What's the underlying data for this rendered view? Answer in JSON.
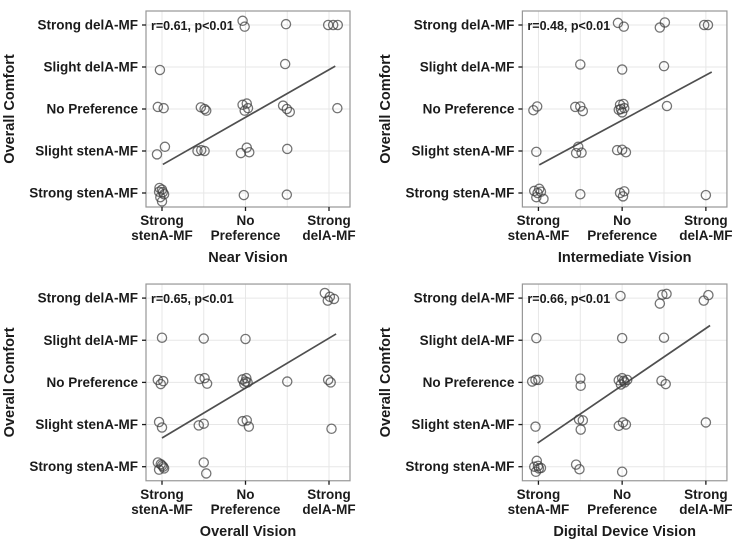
{
  "page": {
    "background": "#ffffff"
  },
  "style": {
    "point_color": "#3f3f3f",
    "point_opacity": 0.72,
    "trend_color": "#4f4f4f",
    "grid_color": "#e7e7e7",
    "border_color": "#979797",
    "text_color": "#1b1b1b"
  },
  "axis": {
    "y_label": "Overall Comfort",
    "y_tick_labels": [
      "Strong delA-MF",
      "Slight delA-MF",
      "No Preference",
      "Slight stenA-MF",
      "Strong stenA-MF"
    ],
    "x_tick_positions": [
      1,
      3,
      5
    ],
    "x_tick_labels": [
      [
        "Strong",
        "stenA-MF"
      ],
      [
        "No",
        "Preference"
      ],
      [
        "Strong",
        "delA-MF"
      ]
    ]
  },
  "chart_data": [
    {
      "type": "scatter",
      "xlabel": "Near Vision",
      "ylabel": "Overall Comfort",
      "annotation": "r=0.61, p<0.01",
      "r": 0.61,
      "p": "<0.01",
      "x_categories": {
        "1": "Strong stenA-MF",
        "3": "No Preference",
        "5": "Strong delA-MF"
      },
      "y_categories": {
        "1": "Strong stenA-MF",
        "2": "Slight stenA-MF",
        "3": "No Preference",
        "4": "Slight delA-MF",
        "5": "Strong delA-MF"
      },
      "xlim": [
        0.6,
        5.5
      ],
      "ylim": [
        0.66,
        5.33
      ],
      "trendline": {
        "x1": 1.02,
        "y1": 1.68,
        "x2": 5.15,
        "y2": 4.02
      },
      "points": [
        [
          2.93,
          5.1
        ],
        [
          2.98,
          4.96
        ],
        [
          3.97,
          5.02
        ],
        [
          4.98,
          5.0
        ],
        [
          5.1,
          5.0
        ],
        [
          5.21,
          5.0
        ],
        [
          0.95,
          3.93
        ],
        [
          3.95,
          4.07
        ],
        [
          0.9,
          3.05
        ],
        [
          1.04,
          3.02
        ],
        [
          1.93,
          3.04
        ],
        [
          2.02,
          3.0
        ],
        [
          2.06,
          2.96
        ],
        [
          2.93,
          3.1
        ],
        [
          3.03,
          3.13
        ],
        [
          2.98,
          2.96
        ],
        [
          3.06,
          3.02
        ],
        [
          3.9,
          3.08
        ],
        [
          3.99,
          3.0
        ],
        [
          4.06,
          2.93
        ],
        [
          5.2,
          3.02
        ],
        [
          0.88,
          1.92
        ],
        [
          1.07,
          2.1
        ],
        [
          1.85,
          2.0
        ],
        [
          1.94,
          2.02
        ],
        [
          2.02,
          2.0
        ],
        [
          2.89,
          1.95
        ],
        [
          3.03,
          2.08
        ],
        [
          3.09,
          1.97
        ],
        [
          4.0,
          2.05
        ],
        [
          0.93,
          1.03
        ],
        [
          1.0,
          1.08
        ],
        [
          1.05,
          0.97
        ],
        [
          0.96,
          0.9
        ],
        [
          1.02,
          1.02
        ],
        [
          0.94,
          1.12
        ],
        [
          1.0,
          0.8
        ],
        [
          2.96,
          0.95
        ],
        [
          3.99,
          0.96
        ]
      ]
    },
    {
      "type": "scatter",
      "xlabel": "Intermediate Vision",
      "ylabel": "Overall Comfort",
      "annotation": "r=0.48, p<0.01",
      "r": 0.48,
      "p": "<0.01",
      "x_categories": {
        "1": "Strong stenA-MF",
        "3": "No Preference",
        "5": "Strong delA-MF"
      },
      "y_categories": {
        "1": "Strong stenA-MF",
        "2": "Slight stenA-MF",
        "3": "No Preference",
        "4": "Slight delA-MF",
        "5": "Strong delA-MF"
      },
      "xlim": [
        0.6,
        5.5
      ],
      "ylim": [
        0.66,
        5.33
      ],
      "trendline": {
        "x1": 1.02,
        "y1": 1.67,
        "x2": 5.14,
        "y2": 3.88
      },
      "points": [
        [
          2.9,
          5.05
        ],
        [
          3.04,
          4.96
        ],
        [
          3.9,
          4.94
        ],
        [
          4.02,
          5.06
        ],
        [
          4.96,
          5.0
        ],
        [
          5.05,
          5.0
        ],
        [
          2.0,
          4.06
        ],
        [
          3.0,
          3.94
        ],
        [
          4.0,
          4.02
        ],
        [
          0.88,
          2.97
        ],
        [
          0.97,
          3.06
        ],
        [
          1.88,
          3.05
        ],
        [
          2.0,
          3.06
        ],
        [
          2.06,
          2.95
        ],
        [
          2.95,
          3.1
        ],
        [
          3.03,
          3.12
        ],
        [
          2.97,
          3.0
        ],
        [
          3.05,
          3.02
        ],
        [
          3.0,
          2.92
        ],
        [
          2.92,
          2.98
        ],
        [
          4.07,
          3.07
        ],
        [
          0.95,
          1.98
        ],
        [
          1.95,
          2.1
        ],
        [
          1.9,
          1.95
        ],
        [
          2.03,
          1.96
        ],
        [
          2.88,
          2.02
        ],
        [
          3.0,
          2.03
        ],
        [
          3.09,
          1.97
        ],
        [
          0.9,
          1.05
        ],
        [
          0.98,
          1.0
        ],
        [
          1.06,
          1.03
        ],
        [
          0.95,
          0.9
        ],
        [
          1.02,
          1.1
        ],
        [
          1.12,
          0.86
        ],
        [
          2.0,
          0.97
        ],
        [
          2.95,
          1.0
        ],
        [
          3.02,
          0.92
        ],
        [
          3.05,
          1.04
        ],
        [
          5.0,
          0.95
        ]
      ]
    },
    {
      "type": "scatter",
      "xlabel": "Overall Vision",
      "ylabel": "Overall Comfort",
      "annotation": "r=0.65, p<0.01",
      "r": 0.65,
      "p": "<0.01",
      "x_categories": {
        "1": "Strong stenA-MF",
        "3": "No Preference",
        "5": "Strong delA-MF"
      },
      "y_categories": {
        "1": "Strong stenA-MF",
        "2": "Slight stenA-MF",
        "3": "No Preference",
        "4": "Slight delA-MF",
        "5": "Strong delA-MF"
      },
      "xlim": [
        0.6,
        5.5
      ],
      "ylim": [
        0.66,
        5.33
      ],
      "trendline": {
        "x1": 1.0,
        "y1": 1.68,
        "x2": 5.17,
        "y2": 4.15
      },
      "points": [
        [
          4.9,
          5.12
        ],
        [
          5.02,
          5.03
        ],
        [
          5.12,
          4.98
        ],
        [
          4.97,
          4.94
        ],
        [
          1.0,
          4.06
        ],
        [
          2.0,
          4.04
        ],
        [
          3.0,
          4.03
        ],
        [
          0.9,
          3.06
        ],
        [
          0.97,
          2.96
        ],
        [
          1.03,
          3.03
        ],
        [
          1.9,
          3.08
        ],
        [
          2.02,
          3.1
        ],
        [
          2.08,
          2.97
        ],
        [
          2.93,
          3.07
        ],
        [
          3.02,
          3.1
        ],
        [
          2.97,
          2.97
        ],
        [
          3.05,
          3.0
        ],
        [
          3.0,
          3.02
        ],
        [
          4.0,
          3.02
        ],
        [
          4.98,
          3.06
        ],
        [
          5.04,
          3.0
        ],
        [
          0.93,
          2.06
        ],
        [
          1.0,
          1.93
        ],
        [
          1.88,
          1.98
        ],
        [
          2.0,
          2.02
        ],
        [
          2.93,
          2.08
        ],
        [
          3.03,
          2.1
        ],
        [
          3.08,
          1.95
        ],
        [
          5.06,
          1.9
        ],
        [
          0.9,
          1.1
        ],
        [
          0.97,
          1.06
        ],
        [
          1.03,
          1.0
        ],
        [
          0.93,
          0.93
        ],
        [
          1.05,
          0.96
        ],
        [
          1.0,
          1.03
        ],
        [
          2.0,
          1.1
        ],
        [
          2.06,
          0.84
        ]
      ]
    },
    {
      "type": "scatter",
      "xlabel": "Digital Device Vision",
      "ylabel": "Overall Comfort",
      "annotation": "r=0.66, p<0.01",
      "r": 0.66,
      "p": "<0.01",
      "x_categories": {
        "1": "Strong stenA-MF",
        "3": "No Preference",
        "5": "Strong delA-MF"
      },
      "y_categories": {
        "1": "Strong stenA-MF",
        "2": "Slight stenA-MF",
        "3": "No Preference",
        "4": "Slight delA-MF",
        "5": "Strong delA-MF"
      },
      "xlim": [
        0.6,
        5.5
      ],
      "ylim": [
        0.66,
        5.33
      ],
      "trendline": {
        "x1": 0.98,
        "y1": 1.56,
        "x2": 5.1,
        "y2": 4.35
      },
      "points": [
        [
          2.96,
          5.05
        ],
        [
          3.9,
          4.87
        ],
        [
          3.96,
          5.08
        ],
        [
          4.06,
          5.1
        ],
        [
          4.95,
          4.94
        ],
        [
          5.06,
          5.07
        ],
        [
          0.95,
          4.05
        ],
        [
          3.0,
          4.05
        ],
        [
          4.0,
          4.06
        ],
        [
          0.85,
          3.02
        ],
        [
          0.93,
          3.06
        ],
        [
          1.0,
          3.06
        ],
        [
          2.0,
          3.09
        ],
        [
          2.01,
          2.92
        ],
        [
          2.92,
          3.05
        ],
        [
          3.0,
          3.1
        ],
        [
          3.06,
          3.0
        ],
        [
          2.97,
          2.95
        ],
        [
          3.04,
          3.04
        ],
        [
          3.12,
          3.06
        ],
        [
          3.94,
          3.04
        ],
        [
          4.04,
          2.96
        ],
        [
          0.93,
          1.95
        ],
        [
          1.97,
          2.12
        ],
        [
          2.06,
          2.1
        ],
        [
          2.01,
          1.88
        ],
        [
          2.92,
          1.97
        ],
        [
          3.02,
          2.05
        ],
        [
          3.09,
          2.0
        ],
        [
          5.0,
          2.05
        ],
        [
          0.96,
          1.14
        ],
        [
          0.9,
          1.0
        ],
        [
          0.99,
          1.02
        ],
        [
          1.06,
          0.97
        ],
        [
          0.94,
          0.88
        ],
        [
          1.01,
          0.96
        ],
        [
          1.9,
          1.05
        ],
        [
          1.98,
          0.94
        ],
        [
          3.0,
          0.88
        ]
      ]
    }
  ]
}
